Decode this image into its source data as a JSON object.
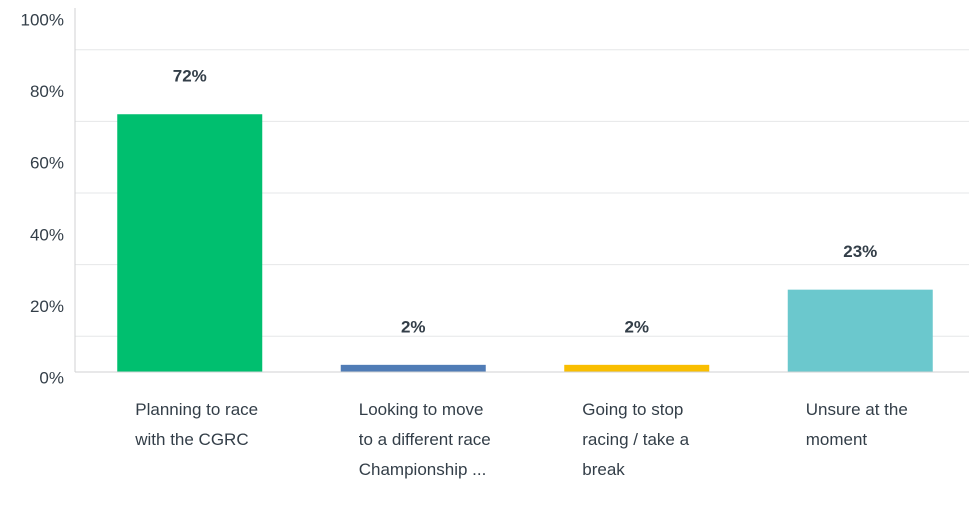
{
  "chart_data": {
    "type": "bar",
    "categories": [
      "Planning to race with the CGRC",
      "Looking to move to a different race Championship ...",
      "Going to stop racing / take a break",
      "Unsure at the moment"
    ],
    "values": [
      72,
      2,
      2,
      23
    ],
    "value_labels": [
      "72%",
      "2%",
      "2%",
      "23%"
    ],
    "colors": [
      "#00bf6f",
      "#507cb6",
      "#f9be00",
      "#6bc8cd"
    ],
    "ylim": [
      0,
      100
    ],
    "yticks": [
      {
        "value": 0,
        "label": "0%"
      },
      {
        "value": 20,
        "label": "20%"
      },
      {
        "value": 40,
        "label": "40%"
      },
      {
        "value": 60,
        "label": "60%"
      },
      {
        "value": 80,
        "label": "80%"
      },
      {
        "value": 100,
        "label": "100%"
      }
    ],
    "minor_yticks": [
      10,
      30,
      50,
      70,
      90
    ],
    "grid": true
  }
}
